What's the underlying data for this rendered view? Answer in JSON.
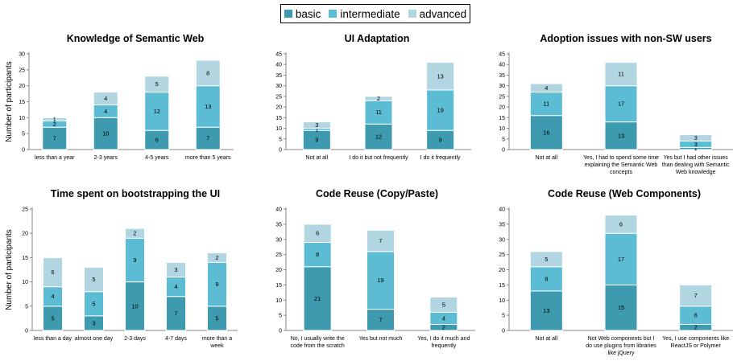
{
  "legend": {
    "items": [
      {
        "label": "basic",
        "color": "#3e9aaf"
      },
      {
        "label": "intermediate",
        "color": "#5bbcd4"
      },
      {
        "label": "advanced",
        "color": "#b1d6e2"
      }
    ]
  },
  "chart_data": [
    {
      "type": "bar",
      "stacked": true,
      "title": "Knowledge of Semantic Web",
      "ylabel": "Number of participants",
      "ylim": [
        0,
        30
      ],
      "yticks": [
        0,
        5,
        10,
        15,
        20,
        25,
        30
      ],
      "categories": [
        [
          "less than a year"
        ],
        [
          "2-3 years"
        ],
        [
          "4-5 years"
        ],
        [
          "more than 5 years"
        ]
      ],
      "series": [
        {
          "name": "basic",
          "values": [
            7,
            10,
            6,
            7
          ]
        },
        {
          "name": "intermediate",
          "values": [
            2,
            4,
            12,
            13
          ]
        },
        {
          "name": "advanced",
          "values": [
            1,
            4,
            5,
            8
          ]
        }
      ],
      "grid": false
    },
    {
      "type": "bar",
      "stacked": true,
      "title": "UI Adaptation",
      "ylabel": "",
      "ylim": [
        0,
        45
      ],
      "yticks": [
        0,
        5,
        10,
        15,
        20,
        25,
        30,
        35,
        40,
        45
      ],
      "categories": [
        [
          "Not at all"
        ],
        [
          "I do it but not frequently"
        ],
        [
          "I do it frequently"
        ]
      ],
      "series": [
        {
          "name": "basic",
          "values": [
            9,
            12,
            9
          ]
        },
        {
          "name": "intermediate",
          "values": [
            1,
            11,
            19
          ]
        },
        {
          "name": "advanced",
          "values": [
            3,
            2,
            13
          ]
        }
      ],
      "grid": false
    },
    {
      "type": "bar",
      "stacked": true,
      "title": "Adoption issues with non-SW users",
      "ylabel": "",
      "ylim": [
        0,
        45
      ],
      "yticks": [
        0,
        5,
        10,
        15,
        20,
        25,
        30,
        35,
        40,
        45
      ],
      "categories": [
        [
          "Not at all"
        ],
        [
          "Yes, I had to spend some time",
          "explaining the Semantic Web",
          "concepts"
        ],
        [
          "Yes but I had other issues",
          "than dealing with Semantic",
          "Web knowledge"
        ]
      ],
      "series": [
        {
          "name": "basic",
          "values": [
            16,
            13,
            1
          ]
        },
        {
          "name": "intermediate",
          "values": [
            11,
            17,
            3
          ]
        },
        {
          "name": "advanced",
          "values": [
            4,
            11,
            3
          ]
        }
      ],
      "grid": false
    },
    {
      "type": "bar",
      "stacked": true,
      "title": "Time spent on bootstrapping the UI",
      "ylabel": "Number of participants",
      "ylim": [
        0,
        25
      ],
      "yticks": [
        0,
        5,
        10,
        15,
        20,
        25
      ],
      "categories": [
        [
          "less than a day"
        ],
        [
          "almost one day"
        ],
        [
          "2-3 days"
        ],
        [
          "4-7 days"
        ],
        [
          "more than a",
          "week"
        ]
      ],
      "series": [
        {
          "name": "basic",
          "values": [
            5,
            3,
            10,
            7,
            5
          ]
        },
        {
          "name": "intermediate",
          "values": [
            4,
            5,
            9,
            4,
            9
          ]
        },
        {
          "name": "advanced",
          "values": [
            6,
            5,
            2,
            3,
            2
          ]
        }
      ],
      "grid": false
    },
    {
      "type": "bar",
      "stacked": true,
      "title": "Code Reuse (Copy/Paste)",
      "ylabel": "",
      "ylim": [
        0,
        40
      ],
      "yticks": [
        0,
        5,
        10,
        15,
        20,
        25,
        30,
        35,
        40
      ],
      "categories": [
        [
          "No, I usually write the",
          "code from the scratch"
        ],
        [
          "Yes but not much"
        ],
        [
          "Yes, I do it much and",
          "frequently"
        ]
      ],
      "series": [
        {
          "name": "basic",
          "values": [
            21,
            7,
            2
          ]
        },
        {
          "name": "intermediate",
          "values": [
            8,
            19,
            4
          ]
        },
        {
          "name": "advanced",
          "values": [
            6,
            7,
            5
          ]
        }
      ],
      "grid": false
    },
    {
      "type": "bar",
      "stacked": true,
      "title": "Code Reuse (Web Components)",
      "ylabel": "",
      "ylim": [
        0,
        40
      ],
      "yticks": [
        0,
        5,
        10,
        15,
        20,
        25,
        30,
        35,
        40
      ],
      "categories": [
        [
          "Not at all"
        ],
        [
          "Not Web components but I",
          "do use plugins from libraries",
          "like jQuery"
        ],
        [
          "Yes, I use components like",
          "ReactJS or Polymer"
        ]
      ],
      "series": [
        {
          "name": "basic",
          "values": [
            13,
            15,
            2
          ]
        },
        {
          "name": "intermediate",
          "values": [
            8,
            17,
            6
          ]
        },
        {
          "name": "advanced",
          "values": [
            5,
            6,
            7
          ]
        }
      ],
      "grid": false
    }
  ]
}
